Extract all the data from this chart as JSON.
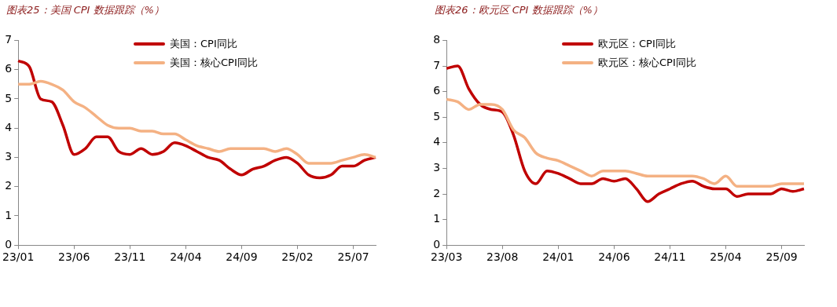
{
  "chart_data": [
    {
      "type": "line",
      "title": "图表25：美国 CPI 数据跟踪（%）",
      "categories": [
        "23/01",
        null,
        null,
        null,
        null,
        "23/06",
        null,
        null,
        null,
        null,
        "23/11",
        null,
        null,
        null,
        null,
        "24/04",
        null,
        null,
        null,
        null,
        "24/09",
        null,
        null,
        null,
        null,
        "25/02",
        null,
        null,
        null,
        null,
        "25/07",
        null,
        null
      ],
      "series": [
        {
          "name": "美国：CPI同比",
          "color": "#c00000",
          "values": [
            6.3,
            6.1,
            5.0,
            4.9,
            4.1,
            3.1,
            3.3,
            3.7,
            3.7,
            3.2,
            3.1,
            3.3,
            3.1,
            3.2,
            3.5,
            3.4,
            3.2,
            3.0,
            2.9,
            2.6,
            2.4,
            2.6,
            2.7,
            2.9,
            3.0,
            2.8,
            2.4,
            2.3,
            2.4,
            2.7,
            2.7,
            2.9,
            3.0
          ]
        },
        {
          "name": "美国：核心CPI同比",
          "color": "#f4b183",
          "values": [
            5.5,
            5.5,
            5.6,
            5.5,
            5.3,
            4.9,
            4.7,
            4.4,
            4.1,
            4.0,
            4.0,
            3.9,
            3.9,
            3.8,
            3.8,
            3.6,
            3.4,
            3.3,
            3.2,
            3.3,
            3.3,
            3.3,
            3.3,
            3.2,
            3.3,
            3.1,
            2.8,
            2.8,
            2.8,
            2.9,
            3.0,
            3.1,
            3.0
          ]
        }
      ],
      "ylim": [
        0,
        7
      ],
      "yticks": [
        0,
        1,
        2,
        3,
        4,
        5,
        6,
        7
      ],
      "grid": false,
      "legend": "top"
    },
    {
      "type": "line",
      "title": "图表26：欧元区 CPI 数据跟踪（%）",
      "categories": [
        "23/03",
        null,
        null,
        null,
        null,
        "23/08",
        null,
        null,
        null,
        null,
        "24/01",
        null,
        null,
        null,
        null,
        "24/06",
        null,
        null,
        null,
        null,
        "24/11",
        null,
        null,
        null,
        null,
        "25/04",
        null,
        null,
        null,
        null,
        "25/09",
        null,
        null
      ],
      "series": [
        {
          "name": "欧元区：CPI同比",
          "color": "#c00000",
          "values": [
            6.9,
            7.0,
            6.1,
            5.5,
            5.3,
            5.2,
            4.3,
            2.9,
            2.4,
            2.9,
            2.8,
            2.6,
            2.4,
            2.4,
            2.6,
            2.5,
            2.6,
            2.2,
            1.7,
            2.0,
            2.2,
            2.4,
            2.5,
            2.3,
            2.2,
            2.2,
            1.9,
            2.0,
            2.0,
            2.0,
            2.2,
            2.1,
            2.2
          ]
        },
        {
          "name": "欧元区：核心CPI同比",
          "color": "#f4b183",
          "values": [
            5.7,
            5.6,
            5.3,
            5.5,
            5.5,
            5.3,
            4.5,
            4.2,
            3.6,
            3.4,
            3.3,
            3.1,
            2.9,
            2.7,
            2.9,
            2.9,
            2.9,
            2.8,
            2.7,
            2.7,
            2.7,
            2.7,
            2.7,
            2.6,
            2.4,
            2.7,
            2.3,
            2.3,
            2.3,
            2.3,
            2.4,
            2.4,
            2.4
          ]
        }
      ],
      "ylim": [
        0,
        8
      ],
      "yticks": [
        0,
        1,
        2,
        3,
        4,
        5,
        6,
        7,
        8
      ],
      "grid": false,
      "legend": "top"
    }
  ]
}
